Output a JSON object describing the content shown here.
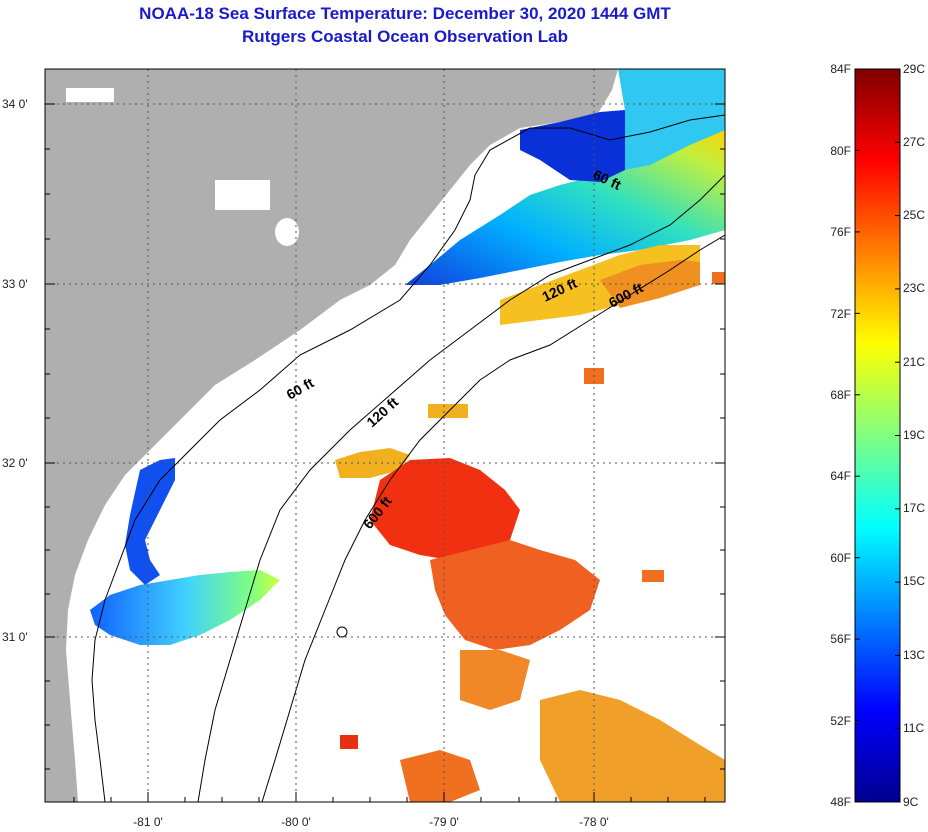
{
  "header": {
    "title": "NOAA-18 Sea Surface Temperature:  December 30, 2020 1444 GMT",
    "subtitle": "Rutgers Coastal Ocean Observation Lab"
  },
  "map": {
    "lat_labels": [
      "34 0'",
      "33 0'",
      "32 0'",
      "31 0'"
    ],
    "lon_labels": [
      "-81 0'",
      "-80 0'",
      "-79 0'",
      "-78 0'"
    ],
    "isobath_labels": [
      "60 ft",
      "60 ft",
      "120 ft",
      "120 ft",
      "600 ft",
      "600 ft"
    ]
  },
  "colorbar": {
    "fahrenheit_labels": [
      "84F",
      "80F",
      "76F",
      "72F",
      "68F",
      "64F",
      "60F",
      "56F",
      "52F",
      "48F"
    ],
    "celsius_labels": [
      "29C",
      "27C",
      "25C",
      "23C",
      "21C",
      "19C",
      "17C",
      "15C",
      "13C",
      "11C",
      "9C"
    ],
    "colors": [
      "#00008f",
      "#0000ff",
      "#0080ff",
      "#00ffff",
      "#80ff80",
      "#ffff00",
      "#ff8000",
      "#ff0000",
      "#800000"
    ]
  }
}
